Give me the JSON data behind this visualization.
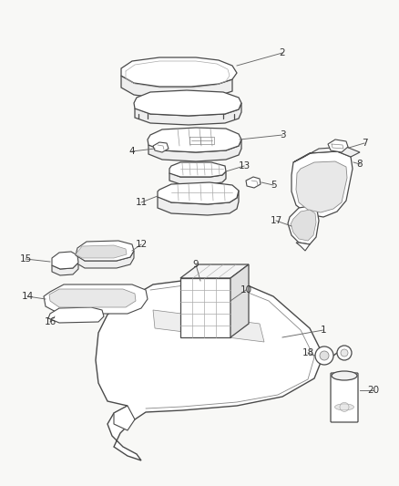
{
  "background_color": "#f8f8f6",
  "line_color": "#4a4a4a",
  "label_color": "#333333",
  "figsize": [
    4.38,
    5.33
  ],
  "dpi": 100
}
